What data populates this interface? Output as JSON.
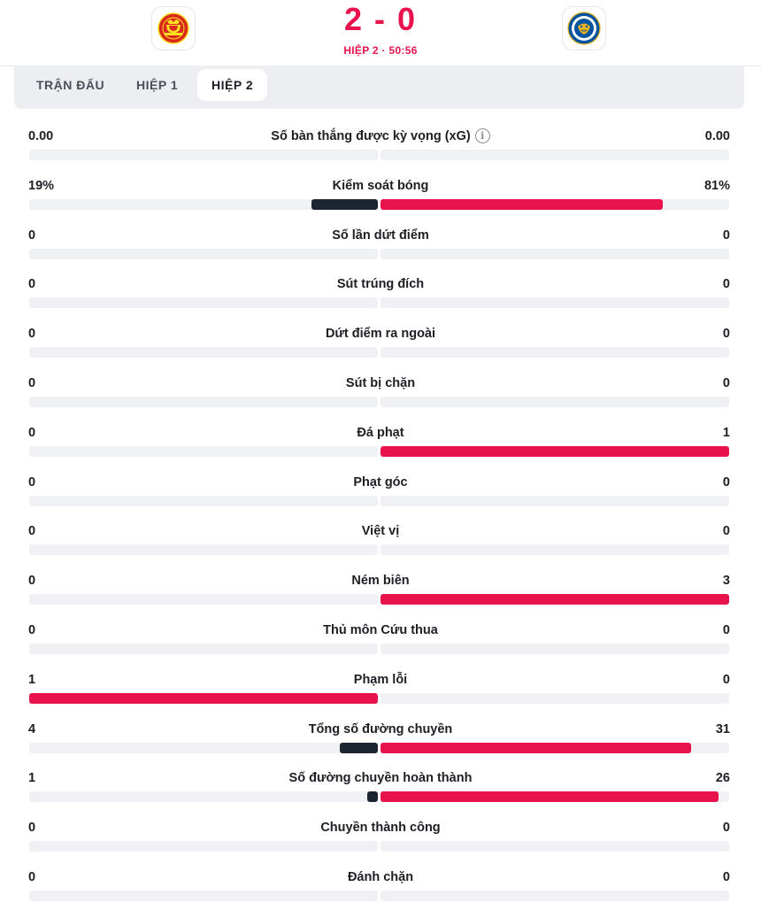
{
  "match": {
    "home_team": "Manchester United",
    "away_team": "Leicester City",
    "score": "2 - 0",
    "period_label": "HIỆP 2 · 50:56"
  },
  "tabs": [
    {
      "label": "TRẬN ĐẤU",
      "active": false
    },
    {
      "label": "HIỆP 1",
      "active": false
    },
    {
      "label": "HIỆP 2",
      "active": true
    }
  ],
  "colors": {
    "accent": "#e8134c",
    "home_bar": "#1c2530",
    "track": "#f0f1f4"
  },
  "stats": [
    {
      "label": "Số bàn thắng được kỳ vọng (xG)",
      "home": "0.00",
      "away": "0.00",
      "home_share": 0,
      "away_share": 0,
      "info": true
    },
    {
      "label": "Kiểm soát bóng",
      "home": "19%",
      "away": "81%",
      "home_share": 0.19,
      "away_share": 0.81,
      "home_color": "#1c2530",
      "away_color": "#e8134c"
    },
    {
      "label": "Số lần dứt điểm",
      "home": "0",
      "away": "0",
      "home_share": 0,
      "away_share": 0
    },
    {
      "label": "Sút trúng đích",
      "home": "0",
      "away": "0",
      "home_share": 0,
      "away_share": 0
    },
    {
      "label": "Dứt điểm ra ngoài",
      "home": "0",
      "away": "0",
      "home_share": 0,
      "away_share": 0
    },
    {
      "label": "Sút bị chặn",
      "home": "0",
      "away": "0",
      "home_share": 0,
      "away_share": 0
    },
    {
      "label": "Đá phạt",
      "home": "0",
      "away": "1",
      "home_share": 0,
      "away_share": 1.0,
      "away_color": "#e8134c"
    },
    {
      "label": "Phạt góc",
      "home": "0",
      "away": "0",
      "home_share": 0,
      "away_share": 0
    },
    {
      "label": "Việt vị",
      "home": "0",
      "away": "0",
      "home_share": 0,
      "away_share": 0
    },
    {
      "label": "Ném biên",
      "home": "0",
      "away": "3",
      "home_share": 0,
      "away_share": 1.0,
      "away_color": "#e8134c"
    },
    {
      "label": "Thủ môn Cứu thua",
      "home": "0",
      "away": "0",
      "home_share": 0,
      "away_share": 0
    },
    {
      "label": "Phạm lỗi",
      "home": "1",
      "away": "0",
      "home_share": 1.0,
      "away_share": 0,
      "home_color": "#e8134c"
    },
    {
      "label": "Tổng số đường chuyền",
      "home": "4",
      "away": "31",
      "home_share": 0.11,
      "away_share": 0.89,
      "home_color": "#1c2530",
      "away_color": "#e8134c"
    },
    {
      "label": "Số đường chuyền hoàn thành",
      "home": "1",
      "away": "26",
      "home_share": 0.03,
      "away_share": 0.97,
      "home_color": "#1c2530",
      "away_color": "#e8134c"
    },
    {
      "label": "Chuyền thành công",
      "home": "0",
      "away": "0",
      "home_share": 0,
      "away_share": 0
    },
    {
      "label": "Đánh chặn",
      "home": "0",
      "away": "0",
      "home_share": 0,
      "away_share": 0
    }
  ]
}
